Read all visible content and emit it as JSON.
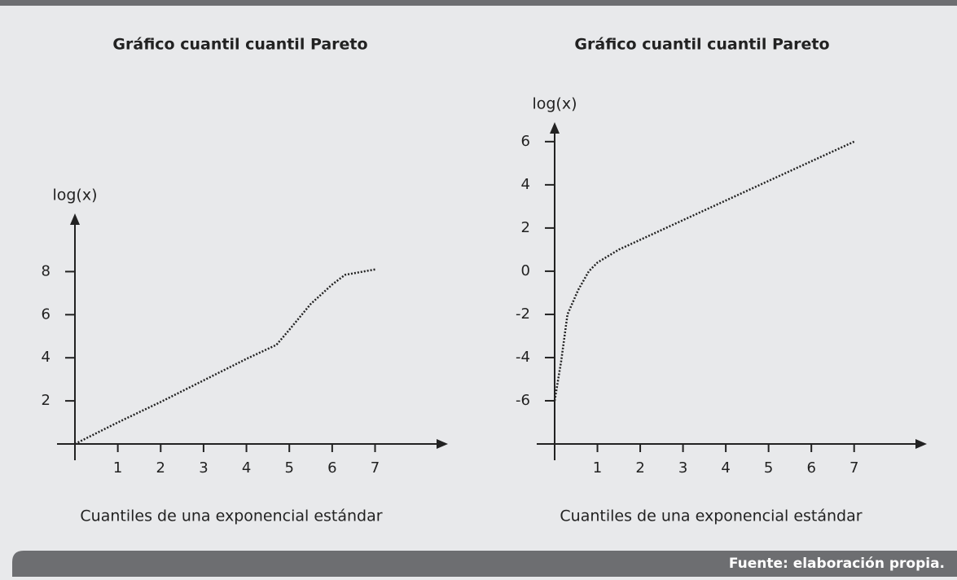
{
  "chart_data": [
    {
      "type": "line",
      "title": "Gráfico cuantil cuantil Pareto",
      "xlabel": "Cuantiles de una exponencial estándar",
      "ylabel": "log(x)",
      "x": [
        0,
        1,
        2,
        3,
        4,
        4.7,
        5,
        5.5,
        6,
        6.3,
        7
      ],
      "values": [
        0,
        1,
        1.95,
        2.95,
        3.95,
        4.6,
        5.3,
        6.5,
        7.4,
        7.85,
        8.1
      ],
      "color": "#222222",
      "xlim": [
        0,
        8.7
      ],
      "ylim": [
        0,
        10.7
      ],
      "xticks": [
        1,
        2,
        3,
        4,
        5,
        6,
        7
      ],
      "yticks": [
        2,
        4,
        6,
        8
      ]
    },
    {
      "type": "line",
      "title": "Gráfico cuantil cuantil Pareto",
      "xlabel": "Cuantiles de una exponencial estándar",
      "ylabel": "log(x)",
      "x": [
        0,
        0.15,
        0.3,
        0.55,
        0.8,
        1,
        1.5,
        7
      ],
      "values": [
        -6,
        -4.2,
        -2,
        -0.87,
        0,
        0.4,
        1,
        6
      ],
      "color": "#222222",
      "xlim": [
        0,
        8.7
      ],
      "ylim": [
        -8,
        6.9
      ],
      "xticks": [
        1,
        2,
        3,
        4,
        5,
        6,
        7
      ],
      "yticks": [
        -6,
        -4,
        -2,
        0,
        2,
        4,
        6
      ]
    }
  ],
  "source": "Fuente: elaboración propia."
}
